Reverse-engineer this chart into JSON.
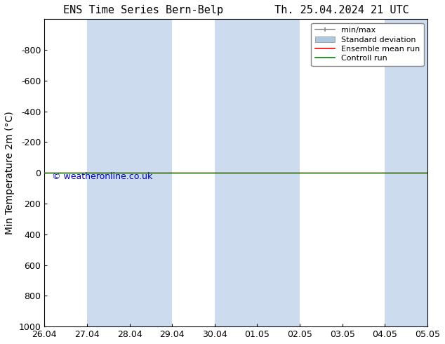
{
  "title_left": "ENS Time Series Bern-Belp",
  "title_right": "Th. 25.04.2024 21 UTC",
  "ylabel": "Min Temperature 2m (°C)",
  "watermark": "© weatheronline.co.uk",
  "ylim_bottom": 1000,
  "ylim_top": -1000,
  "yticks": [
    -800,
    -600,
    -400,
    -200,
    0,
    200,
    400,
    600,
    800,
    1000
  ],
  "xtick_labels": [
    "26.04",
    "27.04",
    "28.04",
    "29.04",
    "30.04",
    "01.05",
    "02.05",
    "03.05",
    "04.05",
    "05.05"
  ],
  "n_xticks": 10,
  "shaded_bands": [
    {
      "xmin": 1,
      "xmax": 3
    },
    {
      "xmin": 4,
      "xmax": 6
    },
    {
      "xmin": 8,
      "xmax": 10
    }
  ],
  "band_color": "#ccdcee",
  "line_y": 0,
  "line_color_control": "#008000",
  "line_color_ensemble": "#ff0000",
  "line_width": 1.0,
  "legend_labels": [
    "min/max",
    "Standard deviation",
    "Ensemble mean run",
    "Controll run"
  ],
  "minmax_color": "#888888",
  "std_color": "#aec8e0",
  "ensemble_color": "#ff0000",
  "control_color": "#008000",
  "background_color": "#ffffff",
  "font_size": 9,
  "title_font_size": 11,
  "watermark_color": "#0000cc",
  "watermark_size": 9
}
